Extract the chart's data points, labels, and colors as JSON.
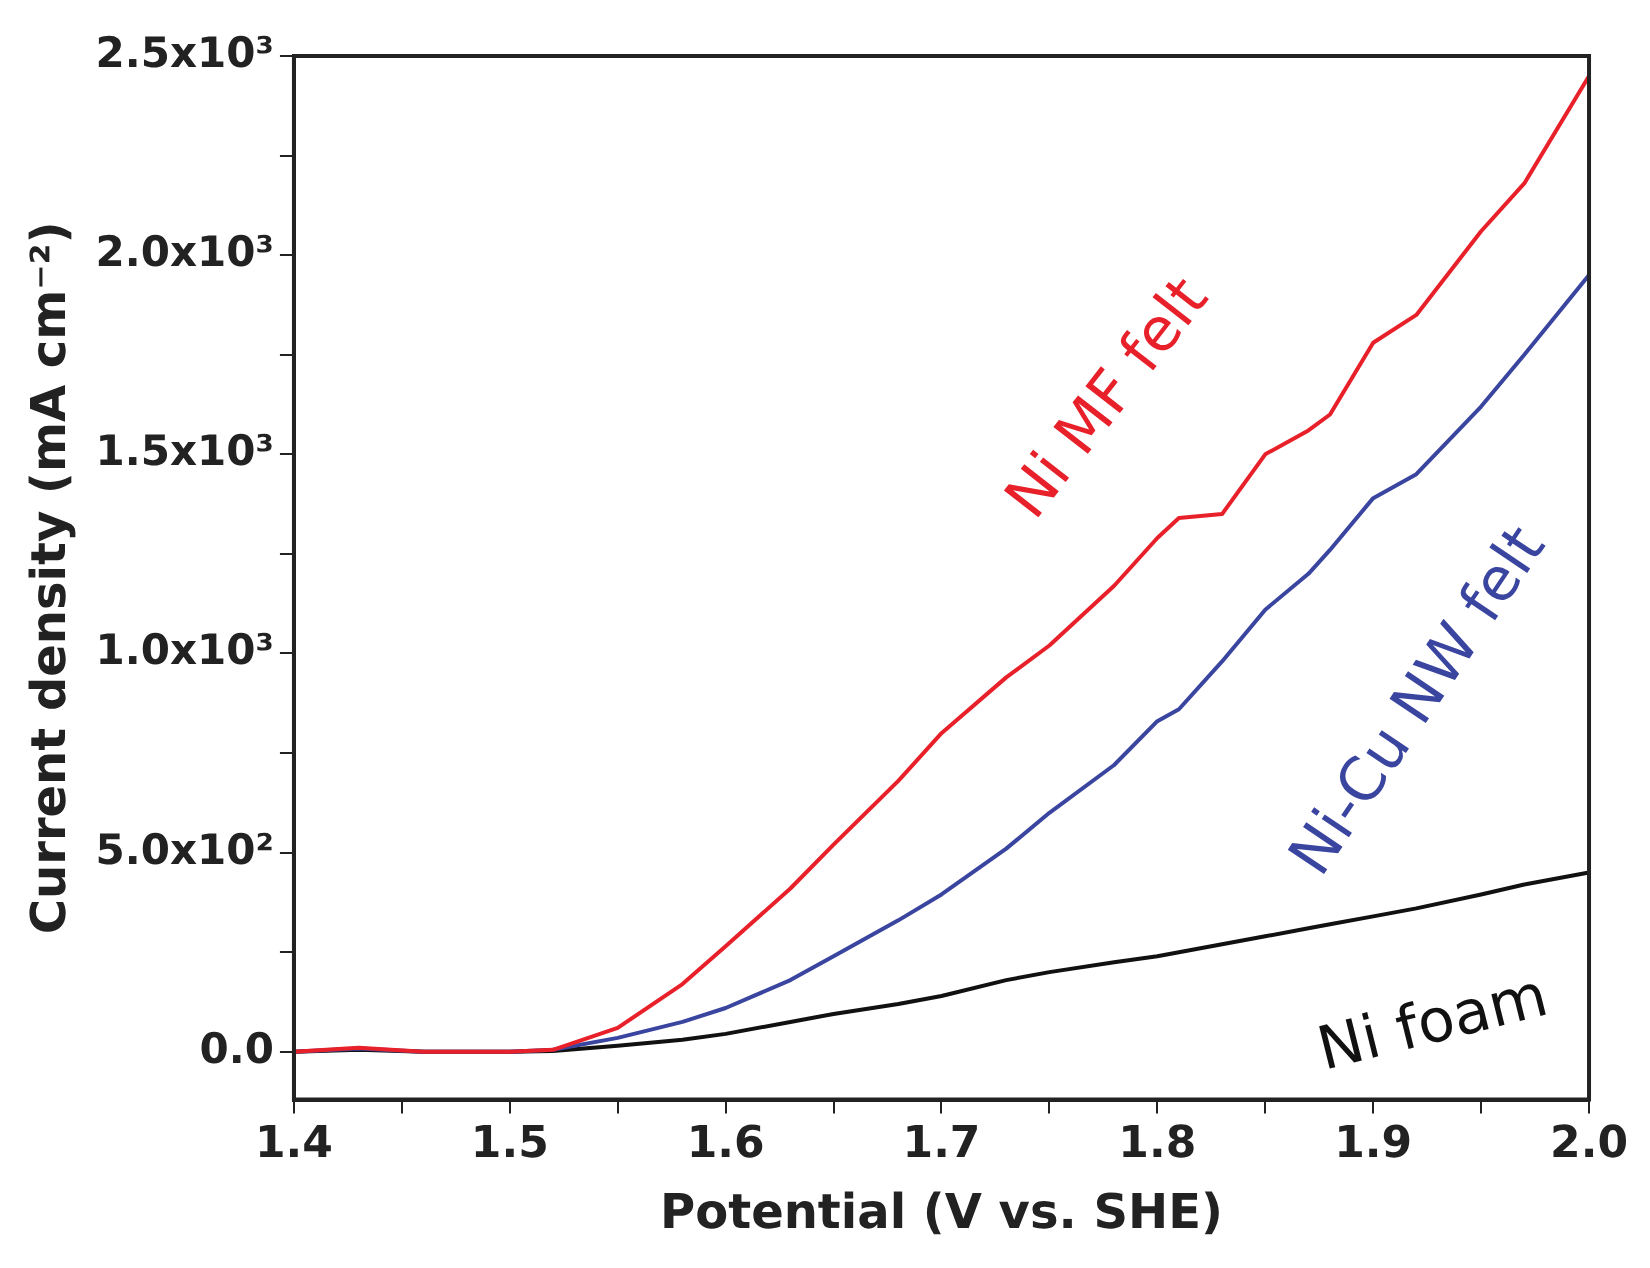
{
  "chart_data": {
    "type": "line",
    "xlabel": "Potential (V vs. SHE)",
    "ylabel": "Current density (mA cm⁻²)",
    "xlim": [
      1.4,
      2.0
    ],
    "ylim": [
      -120,
      2500
    ],
    "xticks": [
      1.4,
      {
        "value": 1.45,
        "label": null
      },
      1.5,
      {
        "value": 1.55,
        "label": null
      },
      1.6,
      {
        "value": 1.65,
        "label": null
      },
      1.7,
      {
        "value": 1.75,
        "label": null
      },
      1.8,
      {
        "value": 1.85,
        "label": null
      },
      1.9,
      {
        "value": 1.95,
        "label": null
      },
      {
        "value": 2.0,
        "label": "2.0"
      }
    ],
    "yticks": [
      {
        "value": 0,
        "label": "0.0"
      },
      {
        "value": 250,
        "label": null
      },
      {
        "value": 500,
        "label": "5.0x10²"
      },
      {
        "value": 750,
        "label": null
      },
      {
        "value": 1000,
        "label": "1.0x10³"
      },
      {
        "value": 1250,
        "label": null
      },
      {
        "value": 1500,
        "label": "1.5x10³"
      },
      {
        "value": 1750,
        "label": null
      },
      {
        "value": 2000,
        "label": "2.0x10³"
      },
      {
        "value": 2250,
        "label": null
      },
      {
        "value": 2500,
        "label": "2.5x10³"
      }
    ],
    "grid": false,
    "legend": false,
    "marker": "none",
    "line_style": "solid",
    "x": [
      1.4,
      1.43,
      1.46,
      1.5,
      1.52,
      1.55,
      1.58,
      1.6,
      1.63,
      1.65,
      1.68,
      1.7,
      1.73,
      1.75,
      1.78,
      1.8,
      1.81,
      1.83,
      1.85,
      1.87,
      1.88,
      1.9,
      1.92,
      1.95,
      1.97,
      2.0
    ],
    "series": [
      {
        "name": "Ni MF felt",
        "color": "#e8202a",
        "values": [
          0,
          10,
          0,
          0,
          5,
          60,
          170,
          265,
          410,
          520,
          680,
          800,
          940,
          1020,
          1170,
          1290,
          1340,
          1350,
          1500,
          1560,
          1600,
          1780,
          1850,
          2060,
          2180,
          2450
        ]
      },
      {
        "name": "Ni-Cu NW felt",
        "color": "#3a45a0",
        "values": [
          0,
          8,
          0,
          0,
          5,
          35,
          75,
          110,
          180,
          240,
          330,
          395,
          510,
          600,
          720,
          830,
          860,
          980,
          1110,
          1200,
          1260,
          1390,
          1450,
          1620,
          1750,
          1950
        ]
      },
      {
        "name": "Ni foam",
        "color": "#111111",
        "values": [
          0,
          5,
          0,
          0,
          2,
          15,
          30,
          45,
          75,
          95,
          120,
          140,
          180,
          200,
          225,
          240,
          250,
          270,
          290,
          310,
          320,
          340,
          360,
          395,
          420,
          450
        ]
      }
    ]
  }
}
